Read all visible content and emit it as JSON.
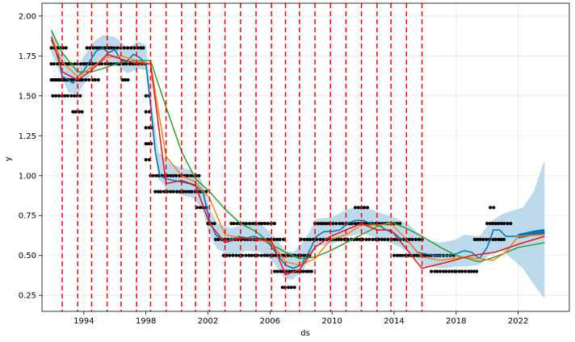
{
  "chart_data": {
    "type": "line",
    "title": "",
    "xlabel": "ds",
    "ylabel": "y",
    "xlim": [
      1991.3,
      2025.3
    ],
    "ylim": [
      0.15,
      2.08
    ],
    "grid": true,
    "legend": "none",
    "colors": {
      "observed": "#000000",
      "forecast": "#0072B2",
      "uncertainty": "#a6cde6",
      "changepoint": "#ff0000",
      "line_red": "#e8141a",
      "line_orange": "#ff7f0e",
      "line_green": "#2ca02c"
    },
    "x_ticks": [
      {
        "value": 1994,
        "label": "1994"
      },
      {
        "value": 1998,
        "label": "1998"
      },
      {
        "value": 2002,
        "label": "2002"
      },
      {
        "value": 2006,
        "label": "2006"
      },
      {
        "value": 2010,
        "label": "2010"
      },
      {
        "value": 2014,
        "label": "2014"
      },
      {
        "value": 2018,
        "label": "2018"
      },
      {
        "value": 2022,
        "label": "2022"
      }
    ],
    "y_ticks": [
      {
        "value": 0.25,
        "label": "0.25"
      },
      {
        "value": 0.5,
        "label": "0.50"
      },
      {
        "value": 0.75,
        "label": "0.75"
      },
      {
        "value": 1.0,
        "label": "1.00"
      },
      {
        "value": 1.25,
        "label": "1.25"
      },
      {
        "value": 1.5,
        "label": "1.50"
      },
      {
        "value": 1.75,
        "label": "1.75"
      },
      {
        "value": 2.0,
        "label": "2.00"
      }
    ],
    "changepoints": [
      1992.6,
      1993.6,
      1994.5,
      1995.5,
      1996.4,
      1997.4,
      1998.3,
      1999.3,
      2000.3,
      2001.2,
      2002.1,
      2003.1,
      2004.1,
      2005.1,
      2006.1,
      2007.0,
      2007.9,
      2008.9,
      2009.9,
      2010.9,
      2011.9,
      2012.9,
      2013.8,
      2014.8,
      2015.8
    ],
    "observed_segments": [
      {
        "x0": 1991.9,
        "x1": 1992.9,
        "values": [
          1.8,
          1.7,
          1.6
        ]
      },
      {
        "x0": 1992.0,
        "x1": 1993.9,
        "values": [
          1.6,
          1.5
        ]
      },
      {
        "x0": 1993.3,
        "x1": 1994.0,
        "values": [
          1.4
        ]
      },
      {
        "x0": 1993.0,
        "x1": 1995.0,
        "values": [
          1.7,
          1.6
        ]
      },
      {
        "x0": 1994.2,
        "x1": 1997.9,
        "values": [
          1.8
        ]
      },
      {
        "x0": 1994.0,
        "x1": 1998.0,
        "values": [
          1.7
        ]
      },
      {
        "x0": 1996.5,
        "x1": 1997.0,
        "values": [
          1.6
        ]
      },
      {
        "x0": 1998.0,
        "x1": 1998.4,
        "values": [
          1.5,
          1.4,
          1.3,
          1.2,
          1.1
        ]
      },
      {
        "x0": 1998.3,
        "x1": 2001.5,
        "values": [
          1.0
        ]
      },
      {
        "x0": 1998.6,
        "x1": 2001.9,
        "values": [
          0.9
        ]
      },
      {
        "x0": 2001.3,
        "x1": 2002.0,
        "values": [
          0.8
        ]
      },
      {
        "x0": 2002.0,
        "x1": 2002.6,
        "values": [
          0.7
        ]
      },
      {
        "x0": 2002.5,
        "x1": 2007.0,
        "values": [
          0.6
        ]
      },
      {
        "x0": 2003.0,
        "x1": 2007.7,
        "values": [
          0.5
        ]
      },
      {
        "x0": 2003.5,
        "x1": 2006.4,
        "values": [
          0.7
        ]
      },
      {
        "x0": 2006.3,
        "x1": 2007.6,
        "values": [
          0.4
        ]
      },
      {
        "x0": 2006.8,
        "x1": 2007.6,
        "values": [
          0.3
        ]
      },
      {
        "x0": 2007.6,
        "x1": 2008.7,
        "values": [
          0.4,
          0.5
        ]
      },
      {
        "x0": 2008.0,
        "x1": 2015.9,
        "values": [
          0.6
        ]
      },
      {
        "x0": 2008.9,
        "x1": 2014.5,
        "values": [
          0.7
        ]
      },
      {
        "x0": 2011.5,
        "x1": 2012.4,
        "values": [
          0.8
        ]
      },
      {
        "x0": 2014.0,
        "x1": 2016.4,
        "values": [
          0.5
        ]
      },
      {
        "x0": 2016.4,
        "x1": 2018.0,
        "values": [
          0.5,
          0.4
        ]
      },
      {
        "x0": 2018.0,
        "x1": 2019.5,
        "values": [
          0.4
        ]
      },
      {
        "x0": 2019.2,
        "x1": 2021.2,
        "values": [
          0.6
        ]
      },
      {
        "x0": 2020.0,
        "x1": 2021.7,
        "values": [
          0.7
        ]
      },
      {
        "x0": 2020.2,
        "x1": 2020.6,
        "values": [
          0.8
        ]
      }
    ],
    "forecast_upper": [
      [
        1991.9,
        1.93
      ],
      [
        1992.5,
        1.78
      ],
      [
        1993.0,
        1.7
      ],
      [
        1993.6,
        1.68
      ],
      [
        1994.5,
        1.83
      ],
      [
        1995.2,
        1.88
      ],
      [
        1996.0,
        1.87
      ],
      [
        1996.8,
        1.8
      ],
      [
        1997.5,
        1.84
      ],
      [
        1998.0,
        1.82
      ],
      [
        1998.4,
        1.45
      ],
      [
        1998.8,
        1.15
      ],
      [
        1999.5,
        1.08
      ],
      [
        2000.3,
        1.05
      ],
      [
        2001.0,
        1.03
      ],
      [
        2001.6,
        0.97
      ],
      [
        2002.1,
        0.8
      ],
      [
        2002.6,
        0.7
      ],
      [
        2003.5,
        0.67
      ],
      [
        2004.5,
        0.7
      ],
      [
        2005.5,
        0.69
      ],
      [
        2006.2,
        0.63
      ],
      [
        2007.0,
        0.53
      ],
      [
        2007.5,
        0.52
      ],
      [
        2008.2,
        0.59
      ],
      [
        2009.0,
        0.73
      ],
      [
        2010.0,
        0.74
      ],
      [
        2011.0,
        0.79
      ],
      [
        2012.0,
        0.81
      ],
      [
        2013.0,
        0.77
      ],
      [
        2014.0,
        0.74
      ],
      [
        2015.0,
        0.69
      ],
      [
        2016.0,
        0.6
      ],
      [
        2017.0,
        0.58
      ],
      [
        2018.0,
        0.6
      ],
      [
        2018.5,
        0.63
      ],
      [
        2019.5,
        0.62
      ],
      [
        2020.3,
        0.72
      ],
      [
        2021.0,
        0.76
      ],
      [
        2021.6,
        0.78
      ],
      [
        2022.3,
        0.8
      ],
      [
        2023.0,
        0.9
      ],
      [
        2023.7,
        1.1
      ]
    ],
    "forecast_lower": [
      [
        1991.9,
        1.77
      ],
      [
        1992.5,
        1.63
      ],
      [
        1993.0,
        1.52
      ],
      [
        1993.6,
        1.51
      ],
      [
        1994.5,
        1.65
      ],
      [
        1995.2,
        1.71
      ],
      [
        1996.0,
        1.7
      ],
      [
        1996.8,
        1.64
      ],
      [
        1997.5,
        1.67
      ],
      [
        1998.0,
        1.66
      ],
      [
        1998.4,
        1.28
      ],
      [
        1998.8,
        0.98
      ],
      [
        1999.5,
        0.9
      ],
      [
        2000.3,
        0.88
      ],
      [
        2001.0,
        0.86
      ],
      [
        2001.6,
        0.8
      ],
      [
        2002.1,
        0.63
      ],
      [
        2002.6,
        0.54
      ],
      [
        2003.5,
        0.5
      ],
      [
        2004.5,
        0.53
      ],
      [
        2005.5,
        0.52
      ],
      [
        2006.2,
        0.46
      ],
      [
        2007.0,
        0.35
      ],
      [
        2007.5,
        0.35
      ],
      [
        2008.2,
        0.42
      ],
      [
        2009.0,
        0.56
      ],
      [
        2010.0,
        0.57
      ],
      [
        2011.0,
        0.62
      ],
      [
        2012.0,
        0.64
      ],
      [
        2013.0,
        0.6
      ],
      [
        2014.0,
        0.57
      ],
      [
        2015.0,
        0.52
      ],
      [
        2016.0,
        0.43
      ],
      [
        2017.0,
        0.42
      ],
      [
        2018.0,
        0.43
      ],
      [
        2018.5,
        0.43
      ],
      [
        2019.5,
        0.44
      ],
      [
        2020.3,
        0.52
      ],
      [
        2021.0,
        0.53
      ],
      [
        2021.6,
        0.48
      ],
      [
        2022.3,
        0.42
      ],
      [
        2023.0,
        0.32
      ],
      [
        2023.7,
        0.23
      ]
    ],
    "series": [
      {
        "id": "forecast",
        "points": [
          [
            1991.9,
            1.85
          ],
          [
            1992.3,
            1.78
          ],
          [
            1992.6,
            1.62
          ],
          [
            1993.0,
            1.6
          ],
          [
            1993.3,
            1.58
          ],
          [
            1993.6,
            1.62
          ],
          [
            1994.0,
            1.66
          ],
          [
            1994.4,
            1.72
          ],
          [
            1994.8,
            1.78
          ],
          [
            1995.2,
            1.8
          ],
          [
            1995.6,
            1.77
          ],
          [
            1996.0,
            1.79
          ],
          [
            1996.4,
            1.72
          ],
          [
            1996.8,
            1.72
          ],
          [
            1997.2,
            1.76
          ],
          [
            1997.6,
            1.74
          ],
          [
            1998.0,
            1.7
          ],
          [
            1998.3,
            1.45
          ],
          [
            1998.6,
            1.15
          ],
          [
            1998.9,
            1.0
          ],
          [
            1999.3,
            0.98
          ],
          [
            1999.8,
            0.97
          ],
          [
            2000.3,
            0.96
          ],
          [
            2000.8,
            0.95
          ],
          [
            2001.3,
            0.93
          ],
          [
            2001.7,
            0.89
          ],
          [
            2002.1,
            0.72
          ],
          [
            2002.5,
            0.63
          ],
          [
            2003.0,
            0.59
          ],
          [
            2003.5,
            0.6
          ],
          [
            2004.0,
            0.62
          ],
          [
            2004.5,
            0.61
          ],
          [
            2005.0,
            0.62
          ],
          [
            2005.5,
            0.6
          ],
          [
            2006.0,
            0.57
          ],
          [
            2006.5,
            0.5
          ],
          [
            2007.0,
            0.44
          ],
          [
            2007.5,
            0.42
          ],
          [
            2008.0,
            0.44
          ],
          [
            2008.5,
            0.52
          ],
          [
            2009.0,
            0.62
          ],
          [
            2009.5,
            0.65
          ],
          [
            2010.0,
            0.65
          ],
          [
            2010.5,
            0.66
          ],
          [
            2011.0,
            0.7
          ],
          [
            2011.5,
            0.72
          ],
          [
            2012.0,
            0.72
          ],
          [
            2012.5,
            0.7
          ],
          [
            2013.0,
            0.69
          ],
          [
            2013.5,
            0.66
          ],
          [
            2014.0,
            0.64
          ],
          [
            2014.5,
            0.6
          ],
          [
            2015.0,
            0.58
          ],
          [
            2015.5,
            0.52
          ],
          [
            2016.0,
            0.51
          ],
          [
            2016.5,
            0.5
          ],
          [
            2017.0,
            0.5
          ],
          [
            2017.5,
            0.5
          ],
          [
            2018.0,
            0.51
          ],
          [
            2018.5,
            0.53
          ],
          [
            2019.0,
            0.52
          ],
          [
            2019.5,
            0.48
          ],
          [
            2020.0,
            0.55
          ],
          [
            2020.4,
            0.66
          ],
          [
            2020.8,
            0.66
          ],
          [
            2021.2,
            0.62
          ],
          [
            2021.6,
            0.62
          ],
          [
            2022.0,
            0.62
          ],
          [
            2022.5,
            0.63
          ],
          [
            2023.0,
            0.64
          ],
          [
            2023.7,
            0.65
          ]
        ]
      },
      {
        "id": "red",
        "points": [
          [
            1991.9,
            1.87
          ],
          [
            1992.6,
            1.65
          ],
          [
            1993.6,
            1.6
          ],
          [
            1994.5,
            1.66
          ],
          [
            1995.5,
            1.76
          ],
          [
            1996.4,
            1.73
          ],
          [
            1997.4,
            1.7
          ],
          [
            1998.3,
            1.7
          ],
          [
            1999.3,
            0.95
          ],
          [
            2000.3,
            0.97
          ],
          [
            2001.2,
            0.94
          ],
          [
            2002.1,
            0.7
          ],
          [
            2003.1,
            0.58
          ],
          [
            2004.1,
            0.61
          ],
          [
            2005.1,
            0.6
          ],
          [
            2006.1,
            0.59
          ],
          [
            2007.0,
            0.38
          ],
          [
            2007.9,
            0.41
          ],
          [
            2008.9,
            0.55
          ],
          [
            2009.9,
            0.62
          ],
          [
            2010.9,
            0.66
          ],
          [
            2011.9,
            0.7
          ],
          [
            2012.9,
            0.66
          ],
          [
            2013.8,
            0.66
          ],
          [
            2014.8,
            0.54
          ],
          [
            2015.8,
            0.42
          ],
          [
            2017.5,
            0.46
          ],
          [
            2019.0,
            0.5
          ],
          [
            2020.5,
            0.52
          ],
          [
            2022.0,
            0.57
          ],
          [
            2023.7,
            0.62
          ]
        ]
      },
      {
        "id": "orange",
        "points": [
          [
            1991.9,
            1.87
          ],
          [
            1992.6,
            1.71
          ],
          [
            1993.6,
            1.62
          ],
          [
            1994.5,
            1.68
          ],
          [
            1995.5,
            1.74
          ],
          [
            1996.4,
            1.75
          ],
          [
            1997.4,
            1.72
          ],
          [
            1998.3,
            1.7
          ],
          [
            1999.3,
            1.12
          ],
          [
            2000.3,
            1.0
          ],
          [
            2001.2,
            0.96
          ],
          [
            2002.1,
            0.86
          ],
          [
            2003.1,
            0.63
          ],
          [
            2004.1,
            0.61
          ],
          [
            2005.1,
            0.6
          ],
          [
            2006.1,
            0.58
          ],
          [
            2007.0,
            0.46
          ],
          [
            2007.9,
            0.44
          ],
          [
            2008.9,
            0.48
          ],
          [
            2009.9,
            0.6
          ],
          [
            2010.9,
            0.63
          ],
          [
            2011.9,
            0.69
          ],
          [
            2012.9,
            0.69
          ],
          [
            2013.8,
            0.7
          ],
          [
            2014.8,
            0.6
          ],
          [
            2015.8,
            0.49
          ],
          [
            2017.0,
            0.47
          ],
          [
            2018.5,
            0.49
          ],
          [
            2019.5,
            0.48
          ],
          [
            2020.4,
            0.47
          ],
          [
            2021.2,
            0.52
          ],
          [
            2022.0,
            0.62
          ],
          [
            2023.7,
            0.63
          ]
        ]
      },
      {
        "id": "green",
        "points": [
          [
            1991.9,
            1.91
          ],
          [
            1992.6,
            1.77
          ],
          [
            1993.6,
            1.65
          ],
          [
            1994.5,
            1.65
          ],
          [
            1995.5,
            1.68
          ],
          [
            1996.4,
            1.71
          ],
          [
            1997.4,
            1.72
          ],
          [
            1998.3,
            1.72
          ],
          [
            1999.3,
            1.43
          ],
          [
            2000.3,
            1.15
          ],
          [
            2001.2,
            0.98
          ],
          [
            2002.1,
            0.9
          ],
          [
            2003.1,
            0.79
          ],
          [
            2004.1,
            0.7
          ],
          [
            2005.1,
            0.65
          ],
          [
            2006.1,
            0.57
          ],
          [
            2007.0,
            0.52
          ],
          [
            2007.9,
            0.48
          ],
          [
            2008.9,
            0.49
          ],
          [
            2009.9,
            0.53
          ],
          [
            2010.9,
            0.58
          ],
          [
            2011.9,
            0.63
          ],
          [
            2012.9,
            0.68
          ],
          [
            2013.8,
            0.71
          ],
          [
            2014.8,
            0.67
          ],
          [
            2015.8,
            0.62
          ],
          [
            2017.0,
            0.55
          ],
          [
            2018.0,
            0.5
          ],
          [
            2019.5,
            0.46
          ],
          [
            2020.5,
            0.49
          ],
          [
            2022.0,
            0.55
          ],
          [
            2023.7,
            0.58
          ]
        ]
      }
    ]
  }
}
